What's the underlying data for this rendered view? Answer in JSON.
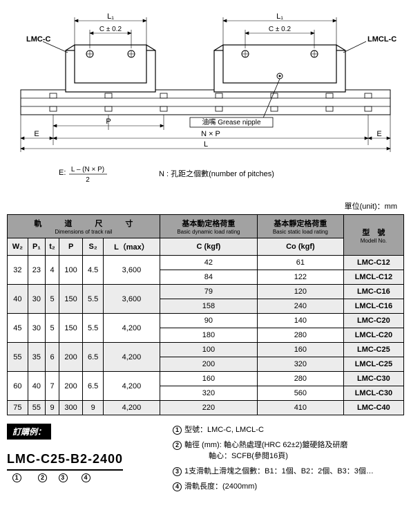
{
  "diagram": {
    "labels": {
      "left_model": "LMC-C",
      "right_model": "LMCL-C",
      "L1_left": "L₁",
      "L1_right": "L₁",
      "C_tol_left": "C ± 0.2",
      "C_tol_right": "C ± 0.2",
      "grease": "油嘴 Grease nipple",
      "E_left": "E",
      "E_right": "E",
      "P": "P",
      "NxP": "N × P",
      "L": "L",
      "footnote_E_left": "E:",
      "footnote_E_formula_top": "L – (N × P)",
      "footnote_E_formula_bot": "2",
      "footnote_N": "N : 孔距之個數(number of pitches)"
    },
    "colors": {
      "stroke": "#000000",
      "fill_block": "#ffffff",
      "fill_rail": "#ffffff",
      "dim_line": "#000000"
    }
  },
  "unit_label": "單位(unit)：mm",
  "table": {
    "header_group_rail": "軌　　　道　　　尺　　　寸",
    "header_group_rail_en": "Dimensions of track rail",
    "header_group_dyn": "基本動定格荷重",
    "header_group_dyn_en": "Basic dynamic load rating",
    "header_group_stat": "基本靜定格荷重",
    "header_group_stat_en": "Basic static load rating",
    "header_group_model": "型　號",
    "header_group_model_en": "Modell No.",
    "cols": {
      "W2": "W₂",
      "P1": "P₁",
      "t2": "t₂",
      "P": "P",
      "S2": "S₂",
      "Lmax": "L（max）",
      "C": "C (kgf)",
      "Co": "Co (kgf)"
    },
    "rows": [
      {
        "W2": "32",
        "P1": "23",
        "t2": "4",
        "P": "100",
        "S2": "4.5",
        "Lmax": "3,600",
        "C": "42",
        "Co": "61",
        "model": "LMC-C12",
        "span": 2
      },
      {
        "C": "84",
        "Co": "122",
        "model": "LMCL-C12"
      },
      {
        "W2": "40",
        "P1": "30",
        "t2": "5",
        "P": "150",
        "S2": "5.5",
        "Lmax": "3,600",
        "C": "79",
        "Co": "120",
        "model": "LMC-C16",
        "span": 2,
        "shade": true
      },
      {
        "C": "158",
        "Co": "240",
        "model": "LMCL-C16",
        "shade": true
      },
      {
        "W2": "45",
        "P1": "30",
        "t2": "5",
        "P": "150",
        "S2": "5.5",
        "Lmax": "4,200",
        "C": "90",
        "Co": "140",
        "model": "LMC-C20",
        "span": 2
      },
      {
        "C": "180",
        "Co": "280",
        "model": "LMCL-C20"
      },
      {
        "W2": "55",
        "P1": "35",
        "t2": "6",
        "P": "200",
        "S2": "6.5",
        "Lmax": "4,200",
        "C": "100",
        "Co": "160",
        "model": "LMC-C25",
        "span": 2,
        "shade": true
      },
      {
        "C": "200",
        "Co": "320",
        "model": "LMCL-C25",
        "shade": true
      },
      {
        "W2": "60",
        "P1": "40",
        "t2": "7",
        "P": "200",
        "S2": "6.5",
        "Lmax": "4,200",
        "C": "160",
        "Co": "280",
        "model": "LMC-C30",
        "span": 2
      },
      {
        "C": "320",
        "Co": "560",
        "model": "LMCL-C30"
      },
      {
        "W2": "75",
        "P1": "55",
        "t2": "9",
        "P": "300",
        "S2": "9",
        "Lmax": "4,200",
        "C": "220",
        "Co": "410",
        "model": "LMC-C40",
        "span": 1,
        "shade": true
      }
    ]
  },
  "order": {
    "header": "訂購例：",
    "code": "LMC-C25-B2-2400",
    "nums": [
      "1",
      "2",
      "3",
      "4"
    ]
  },
  "notes": [
    {
      "n": "1",
      "text": "型號：LMC-C, LMCL-C"
    },
    {
      "n": "2",
      "text": "軸徑 (mm): 軸心熱處理(HRC 62±2)鍍硬鉻及研磨\n軸心：SCFB(參閱16頁)"
    },
    {
      "n": "3",
      "text": "1支滑軌上滑塊之個數：B1：1個、B2：2個、B3：3個…"
    },
    {
      "n": "4",
      "text": "滑軌長度：(2400mm)"
    }
  ]
}
